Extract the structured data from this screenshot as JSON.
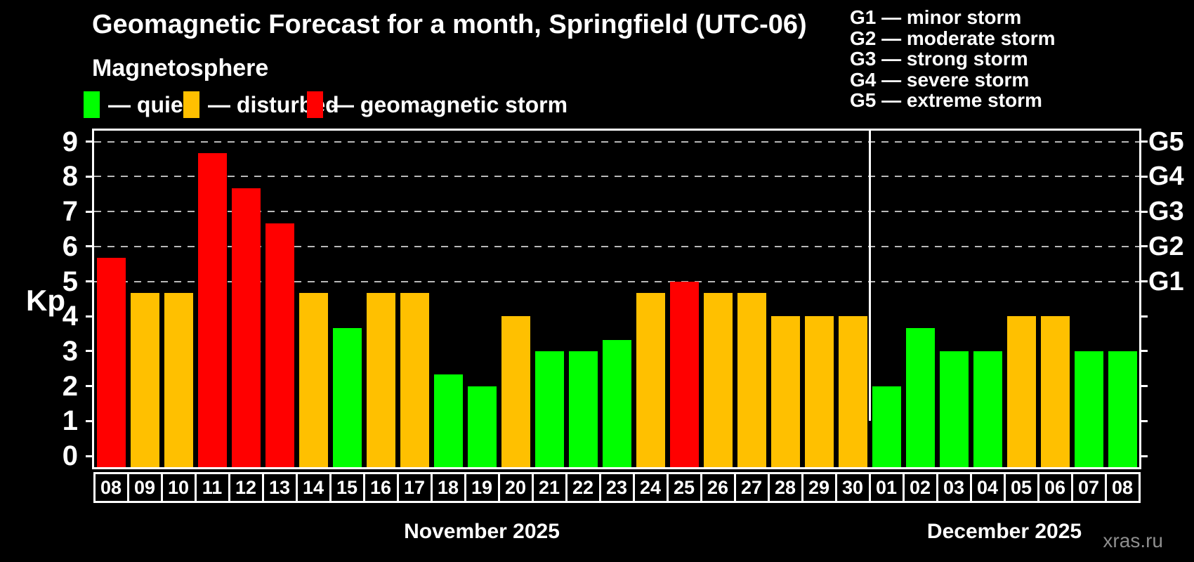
{
  "title": "Geomagnetic Forecast for a month, Springfield (UTC-06)",
  "subtitle": "Magnetosphere",
  "ylabel": "Kp",
  "watermark": "xras.ru",
  "status_colors": {
    "quiet": "#00ff00",
    "disturbed": "#ffc000",
    "storm": "#ff0000"
  },
  "legend": {
    "items": [
      {
        "status": "quiet",
        "label": "— quiet"
      },
      {
        "status": "disturbed",
        "label": "— disturbed"
      },
      {
        "status": "storm",
        "label": "— geomagnetic storm"
      }
    ]
  },
  "g_scale_legend": {
    "lines": [
      "G1 — minor storm",
      "G2 — moderate storm",
      "G3 — strong storm",
      "G4 — severe storm",
      "G5 — extreme storm"
    ]
  },
  "chart_data": {
    "type": "bar",
    "title": "Geomagnetic Forecast for a month, Springfield (UTC-06)",
    "ylabel": "Kp",
    "ylim": [
      -0.4,
      9.4
    ],
    "yticks": [
      0,
      1,
      2,
      3,
      4,
      5,
      6,
      7,
      8,
      9
    ],
    "grid": "horizontal dashed lines only at Kp 5-9 (G-storm levels)",
    "gridlines_at_kp": [
      5,
      6,
      7,
      8,
      9
    ],
    "right_axis": [
      {
        "kp": 5,
        "label": "G1"
      },
      {
        "kp": 6,
        "label": "G2"
      },
      {
        "kp": 7,
        "label": "G3"
      },
      {
        "kp": 8,
        "label": "G4"
      },
      {
        "kp": 9,
        "label": "G5"
      }
    ],
    "legend_position": "top",
    "months": [
      {
        "label": "November 2025",
        "days": [
          {
            "day": "08",
            "kp": 5.67,
            "status": "storm"
          },
          {
            "day": "09",
            "kp": 4.67,
            "status": "disturbed"
          },
          {
            "day": "10",
            "kp": 4.67,
            "status": "disturbed"
          },
          {
            "day": "11",
            "kp": 8.67,
            "status": "storm"
          },
          {
            "day": "12",
            "kp": 7.67,
            "status": "storm"
          },
          {
            "day": "13",
            "kp": 6.67,
            "status": "storm"
          },
          {
            "day": "14",
            "kp": 4.67,
            "status": "disturbed"
          },
          {
            "day": "15",
            "kp": 3.67,
            "status": "quiet"
          },
          {
            "day": "16",
            "kp": 4.67,
            "status": "disturbed"
          },
          {
            "day": "17",
            "kp": 4.67,
            "status": "disturbed"
          },
          {
            "day": "18",
            "kp": 2.33,
            "status": "quiet"
          },
          {
            "day": "19",
            "kp": 2.0,
            "status": "quiet"
          },
          {
            "day": "20",
            "kp": 4.0,
            "status": "disturbed"
          },
          {
            "day": "21",
            "kp": 3.0,
            "status": "quiet"
          },
          {
            "day": "22",
            "kp": 3.0,
            "status": "quiet"
          },
          {
            "day": "23",
            "kp": 3.33,
            "status": "quiet"
          },
          {
            "day": "24",
            "kp": 4.67,
            "status": "disturbed"
          },
          {
            "day": "25",
            "kp": 5.0,
            "status": "storm"
          },
          {
            "day": "26",
            "kp": 4.67,
            "status": "disturbed"
          },
          {
            "day": "27",
            "kp": 4.67,
            "status": "disturbed"
          },
          {
            "day": "28",
            "kp": 4.0,
            "status": "disturbed"
          },
          {
            "day": "29",
            "kp": 4.0,
            "status": "disturbed"
          },
          {
            "day": "30",
            "kp": 4.0,
            "status": "disturbed"
          }
        ]
      },
      {
        "label": "December 2025",
        "days": [
          {
            "day": "01",
            "kp": 2.0,
            "status": "quiet"
          },
          {
            "day": "02",
            "kp": 3.67,
            "status": "quiet"
          },
          {
            "day": "03",
            "kp": 3.0,
            "status": "quiet"
          },
          {
            "day": "04",
            "kp": 3.0,
            "status": "quiet"
          },
          {
            "day": "05",
            "kp": 4.0,
            "status": "disturbed"
          },
          {
            "day": "06",
            "kp": 4.0,
            "status": "disturbed"
          },
          {
            "day": "07",
            "kp": 3.0,
            "status": "quiet"
          },
          {
            "day": "08",
            "kp": 3.0,
            "status": "quiet"
          }
        ]
      }
    ]
  }
}
